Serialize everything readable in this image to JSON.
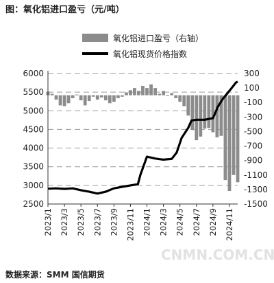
{
  "caption": "图：氧化铝进口盈亏（元/吨）",
  "source": "数据来源：SMM 国信期货",
  "watermark": "CNMN.COM.CN",
  "colors": {
    "bar": "#8c8c8c",
    "line": "#000000",
    "grid": "#9a9a9a"
  },
  "chart_data": {
    "type": "bar+line",
    "title": "图：氧化铝进口盈亏（元/吨）",
    "legend_position": "top-center",
    "grid": true,
    "y_left": {
      "ticks": [
        2500,
        3000,
        3500,
        4000,
        4500,
        5000,
        5500,
        6000
      ],
      "range": [
        2500,
        6000
      ]
    },
    "y_right": {
      "ticks": [
        -1500,
        -1300,
        -1100,
        -900,
        -700,
        -500,
        -300,
        -100,
        100,
        300
      ],
      "range": [
        -1500,
        300
      ]
    },
    "x_ticks": [
      "2023/1",
      "2023/3",
      "2023/5",
      "2023/7",
      "2023/9",
      "2023/11",
      "2024/1",
      "2024/3",
      "2024/5",
      "2024/7",
      "2024/9",
      "2024/11"
    ],
    "x_range": [
      "2023/1",
      "2024/12"
    ],
    "series": [
      {
        "name": "氧化铝进口盈亏（右轴）",
        "kind": "bar",
        "axis": "right",
        "points": [
          [
            "2023/1",
            50
          ],
          [
            "2023/1.5",
            20
          ],
          [
            "2023/2",
            -60
          ],
          [
            "2023/2.5",
            -140
          ],
          [
            "2023/3",
            -150
          ],
          [
            "2023/3.5",
            -110
          ],
          [
            "2023/4",
            -40
          ],
          [
            "2023/4.5",
            10
          ],
          [
            "2023/5",
            -70
          ],
          [
            "2023/5.5",
            -140
          ],
          [
            "2023/6",
            -80
          ],
          [
            "2023/6.5",
            -20
          ],
          [
            "2023/7",
            -60
          ],
          [
            "2023/7.5",
            -30
          ],
          [
            "2023/8",
            -70
          ],
          [
            "2023/8.5",
            -110
          ],
          [
            "2023/9",
            -90
          ],
          [
            "2023/9.5",
            -40
          ],
          [
            "2023/10",
            -20
          ],
          [
            "2023/10.5",
            40
          ],
          [
            "2023/11",
            70
          ],
          [
            "2023/11.5",
            100
          ],
          [
            "2023/12",
            60
          ],
          [
            "2023/12.5",
            130
          ],
          [
            "2024/1",
            100
          ],
          [
            "2024/1.5",
            150
          ],
          [
            "2024/2",
            100
          ],
          [
            "2024/2.5",
            20
          ],
          [
            "2024/3",
            60
          ],
          [
            "2024/3.5",
            -10
          ],
          [
            "2024/4",
            30
          ],
          [
            "2024/4.5",
            -40
          ],
          [
            "2024/5",
            -90
          ],
          [
            "2024/5.5",
            -150
          ],
          [
            "2024/6",
            -280
          ],
          [
            "2024/6.5",
            -480
          ],
          [
            "2024/7",
            -620
          ],
          [
            "2024/7.5",
            -570
          ],
          [
            "2024/8",
            -460
          ],
          [
            "2024/8.5",
            -450
          ],
          [
            "2024/9",
            -510
          ],
          [
            "2024/9.5",
            -580
          ],
          [
            "2024/10",
            -560
          ],
          [
            "2024/10.5",
            -1170
          ],
          [
            "2024/11",
            -1320
          ],
          [
            "2024/11.5",
            -1100
          ],
          [
            "2024/12",
            -1200
          ]
        ]
      },
      {
        "name": "氧化铝现货价格指数",
        "kind": "line",
        "axis": "left",
        "points": [
          [
            "2023/1",
            2910
          ],
          [
            "2023/2",
            2920
          ],
          [
            "2023/3",
            2905
          ],
          [
            "2023/4",
            2920
          ],
          [
            "2023/5",
            2870
          ],
          [
            "2023/6",
            2830
          ],
          [
            "2023/7",
            2780
          ],
          [
            "2023/8",
            2830
          ],
          [
            "2023/9",
            2920
          ],
          [
            "2023/10",
            2960
          ],
          [
            "2023/11",
            3000
          ],
          [
            "2023/11.9",
            3030
          ],
          [
            "2023/12.2",
            3280
          ],
          [
            "2024/1",
            3770
          ],
          [
            "2024/2",
            3720
          ],
          [
            "2024/3",
            3690
          ],
          [
            "2024/4",
            3710
          ],
          [
            "2024/4.6",
            3880
          ],
          [
            "2024/5.2",
            4270
          ],
          [
            "2024/6",
            4540
          ],
          [
            "2024/6.4",
            4740
          ],
          [
            "2024/7",
            4760
          ],
          [
            "2024/8",
            4760
          ],
          [
            "2024/9",
            4800
          ],
          [
            "2024/9.6",
            5110
          ],
          [
            "2024/10.2",
            5320
          ],
          [
            "2024/10.8",
            5480
          ],
          [
            "2024/11.3",
            5620
          ],
          [
            "2024/11.8",
            5760
          ],
          [
            "2024/12",
            5780
          ]
        ]
      }
    ]
  }
}
